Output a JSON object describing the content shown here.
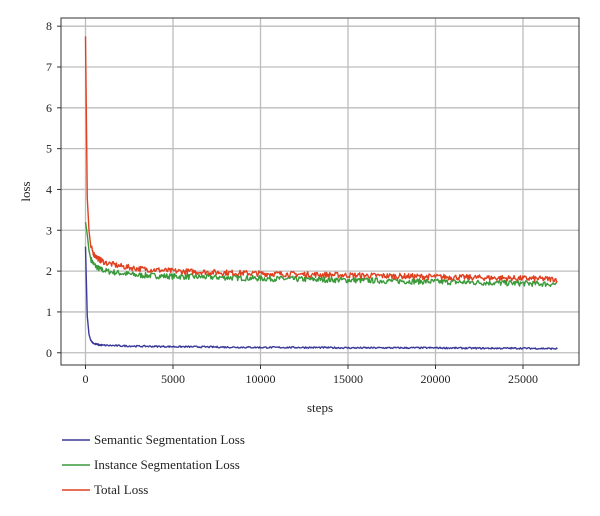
{
  "chart_data": {
    "type": "line",
    "title": "",
    "xlabel": "steps",
    "ylabel": "loss",
    "xlim": [
      -1400,
      28200
    ],
    "ylim": [
      -0.3,
      8.2
    ],
    "xticks": [
      0,
      5000,
      10000,
      15000,
      20000,
      25000
    ],
    "yticks": [
      0,
      1,
      2,
      3,
      4,
      5,
      6,
      7,
      8
    ],
    "grid": true,
    "legend_position": "bottom-left",
    "series": [
      {
        "name": "Semantic Segmentation Loss",
        "color": "#3a3a9a",
        "x": [
          0,
          100,
          200,
          300,
          500,
          800,
          1200,
          2000,
          3000,
          5000,
          7500,
          10000,
          12500,
          15000,
          17500,
          20000,
          22500,
          25000,
          27000
        ],
        "y": [
          2.6,
          0.9,
          0.45,
          0.3,
          0.22,
          0.19,
          0.18,
          0.17,
          0.16,
          0.15,
          0.14,
          0.13,
          0.13,
          0.12,
          0.12,
          0.12,
          0.11,
          0.11,
          0.1
        ]
      },
      {
        "name": "Instance Segmentation Loss",
        "color": "#3a9a3a",
        "x": [
          0,
          100,
          200,
          300,
          500,
          800,
          1200,
          2000,
          3000,
          5000,
          7500,
          10000,
          12500,
          15000,
          17500,
          20000,
          22500,
          25000,
          27000
        ],
        "y": [
          3.2,
          2.9,
          2.5,
          2.3,
          2.15,
          2.05,
          2.0,
          1.95,
          1.9,
          1.87,
          1.85,
          1.82,
          1.8,
          1.78,
          1.76,
          1.74,
          1.72,
          1.7,
          1.68
        ]
      },
      {
        "name": "Total Loss",
        "color": "#e04020",
        "x": [
          0,
          100,
          200,
          300,
          500,
          800,
          1200,
          2000,
          3000,
          5000,
          7500,
          10000,
          12500,
          15000,
          17500,
          20000,
          22500,
          25000,
          27000
        ],
        "y": [
          7.75,
          3.8,
          3.0,
          2.6,
          2.4,
          2.28,
          2.2,
          2.12,
          2.06,
          2.0,
          1.97,
          1.94,
          1.92,
          1.9,
          1.88,
          1.86,
          1.84,
          1.82,
          1.8
        ]
      }
    ]
  }
}
